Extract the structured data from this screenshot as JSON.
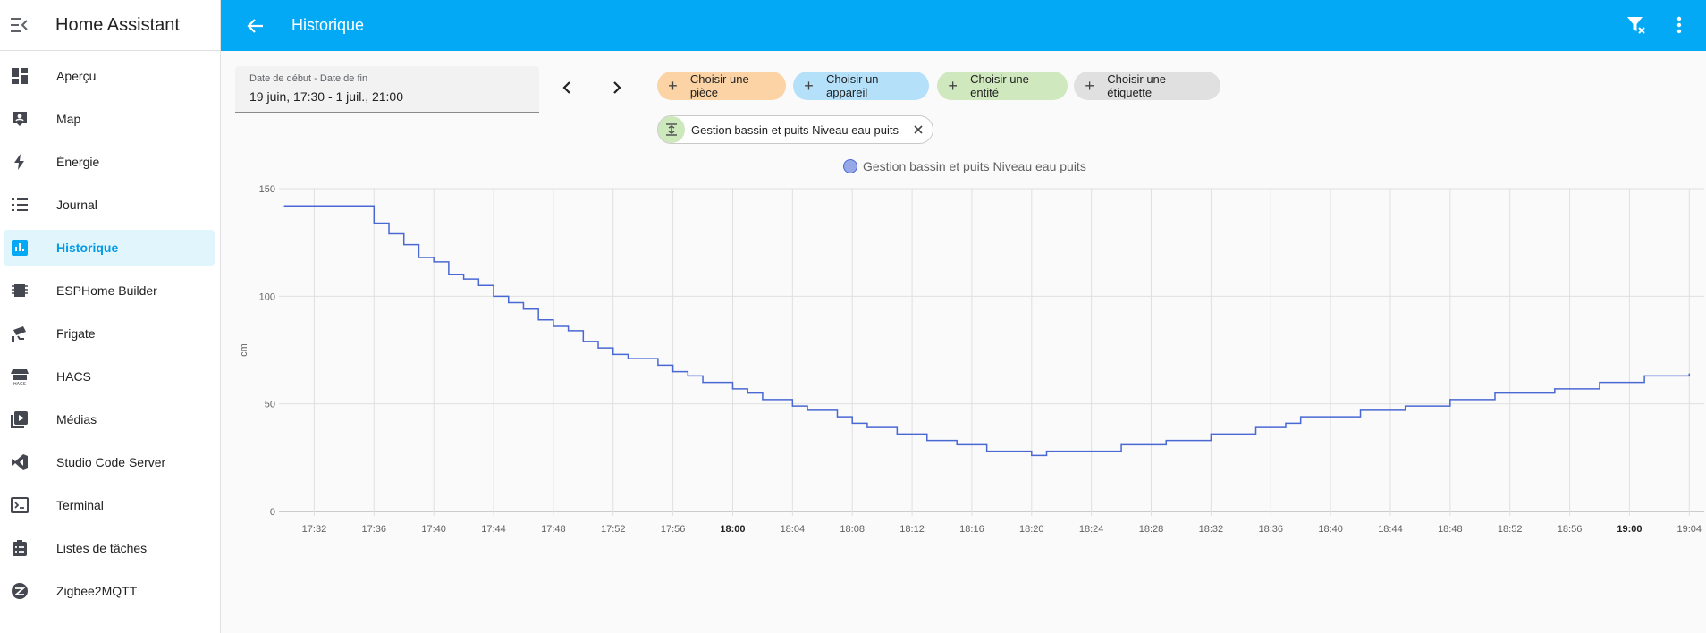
{
  "app": {
    "title": "Home Assistant"
  },
  "sidebar": {
    "items": [
      {
        "label": "Aperçu",
        "icon": "dashboard-icon"
      },
      {
        "label": "Map",
        "icon": "map-account-icon"
      },
      {
        "label": "Énergie",
        "icon": "lightning-icon"
      },
      {
        "label": "Journal",
        "icon": "list-icon"
      },
      {
        "label": "Historique",
        "icon": "chart-box-icon",
        "active": true
      },
      {
        "label": "ESPHome Builder",
        "icon": "chip-icon"
      },
      {
        "label": "Frigate",
        "icon": "cctv-icon"
      },
      {
        "label": "HACS",
        "icon": "hacs-icon"
      },
      {
        "label": "Médias",
        "icon": "play-box-icon"
      },
      {
        "label": "Studio Code Server",
        "icon": "vscode-icon"
      },
      {
        "label": "Terminal",
        "icon": "console-icon"
      },
      {
        "label": "Listes de tâches",
        "icon": "clipboard-list-icon"
      },
      {
        "label": "Zigbee2MQTT",
        "icon": "zigbee-icon"
      }
    ]
  },
  "header": {
    "title": "Historique"
  },
  "date_range": {
    "label": "Date de début - Date de fin",
    "value": "19 juin, 17:30 - 1 juil., 21:00"
  },
  "filters": {
    "room": "Choisir une pièce",
    "device": "Choisir un appareil",
    "entity": "Choisir une entité",
    "label": "Choisir une étiquette",
    "selected_entity": "Gestion bassin et puits Niveau eau puits"
  },
  "colors": {
    "accent": "#03a9f4",
    "chip_room": "#fcd3a4",
    "chip_device": "#b4e0fa",
    "chip_entity": "#cfe8bd",
    "chip_label": "#e0e0e0",
    "series": "#4a68d4"
  },
  "chart_data": {
    "type": "line",
    "step": true,
    "legend": "top-center",
    "grid": true,
    "ylabel": "cm",
    "ylim": [
      0,
      150
    ],
    "yticks": [
      0,
      50,
      100,
      150
    ],
    "xlim": [
      "17:30",
      "19:05"
    ],
    "xticks": [
      "17:32",
      "17:36",
      "17:40",
      "17:44",
      "17:48",
      "17:52",
      "17:56",
      "18:00",
      "18:04",
      "18:08",
      "18:12",
      "18:16",
      "18:20",
      "18:24",
      "18:28",
      "18:32",
      "18:36",
      "18:40",
      "18:44",
      "18:48",
      "18:52",
      "18:56",
      "19:00",
      "19:04"
    ],
    "bold_ticks": [
      "18:00",
      "19:00"
    ],
    "series": [
      {
        "name": "Gestion bassin et puits Niveau eau puits",
        "points": [
          [
            "17:30",
            142
          ],
          [
            "17:36",
            134
          ],
          [
            "17:37",
            129
          ],
          [
            "17:38",
            124
          ],
          [
            "17:39",
            118
          ],
          [
            "17:40",
            116
          ],
          [
            "17:41",
            110
          ],
          [
            "17:42",
            108
          ],
          [
            "17:43",
            105
          ],
          [
            "17:44",
            100
          ],
          [
            "17:45",
            97
          ],
          [
            "17:46",
            94
          ],
          [
            "17:47",
            89
          ],
          [
            "17:48",
            86
          ],
          [
            "17:49",
            84
          ],
          [
            "17:50",
            79
          ],
          [
            "17:51",
            76
          ],
          [
            "17:52",
            73
          ],
          [
            "17:53",
            71
          ],
          [
            "17:55",
            68
          ],
          [
            "17:56",
            65
          ],
          [
            "17:57",
            63
          ],
          [
            "17:58",
            60
          ],
          [
            "18:00",
            57
          ],
          [
            "18:01",
            55
          ],
          [
            "18:02",
            52
          ],
          [
            "18:04",
            49
          ],
          [
            "18:05",
            47
          ],
          [
            "18:07",
            44
          ],
          [
            "18:08",
            41
          ],
          [
            "18:09",
            39
          ],
          [
            "18:11",
            36
          ],
          [
            "18:13",
            33
          ],
          [
            "18:15",
            31
          ],
          [
            "18:17",
            28
          ],
          [
            "18:20",
            26
          ],
          [
            "18:21",
            28
          ],
          [
            "18:26",
            31
          ],
          [
            "18:29",
            33
          ],
          [
            "18:32",
            36
          ],
          [
            "18:35",
            39
          ],
          [
            "18:37",
            41
          ],
          [
            "18:38",
            44
          ],
          [
            "18:42",
            47
          ],
          [
            "18:45",
            49
          ],
          [
            "18:48",
            52
          ],
          [
            "18:51",
            55
          ],
          [
            "18:55",
            57
          ],
          [
            "18:58",
            60
          ],
          [
            "19:01",
            63
          ],
          [
            "19:04",
            64
          ]
        ]
      }
    ]
  }
}
